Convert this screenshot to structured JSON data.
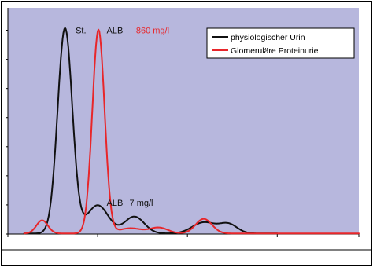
{
  "chart_data": {
    "type": "line",
    "title": "",
    "xlabel": "",
    "ylabel": "",
    "x": [
      0,
      1,
      2,
      3,
      4,
      5,
      6,
      7,
      8,
      9,
      10,
      11,
      12,
      13,
      14,
      15,
      16,
      17,
      18,
      19,
      20,
      21,
      22,
      23,
      24,
      25,
      26,
      27,
      28,
      29,
      30,
      31,
      32,
      33,
      34,
      35,
      36,
      37,
      38,
      39,
      40,
      41,
      42,
      43,
      44,
      45,
      46,
      47,
      48,
      49,
      50,
      51,
      52,
      53,
      54,
      55,
      56,
      57,
      58,
      59,
      60,
      61,
      62,
      63,
      64,
      65,
      66,
      67,
      68,
      69,
      70,
      71,
      72,
      73,
      74,
      75,
      76,
      77,
      78,
      79,
      80,
      81,
      82,
      83,
      84,
      85,
      86,
      87,
      88,
      89,
      90,
      91,
      92,
      93,
      94,
      95,
      96,
      97,
      98,
      99,
      100,
      101,
      102,
      103,
      104,
      105,
      106,
      107,
      108,
      109,
      110,
      111,
      112,
      113,
      114,
      115,
      116,
      117,
      118,
      119,
      120,
      121,
      122,
      123,
      124,
      125,
      126,
      127,
      128,
      129,
      130,
      131,
      132,
      133,
      134,
      135,
      136,
      137,
      138,
      139,
      140,
      141,
      142,
      143,
      144,
      145,
      146,
      147,
      148,
      149,
      150,
      151,
      152,
      153,
      154,
      155,
      156,
      157,
      158,
      159,
      160,
      161,
      162,
      163,
      164,
      165,
      166,
      167,
      168,
      169,
      170,
      171,
      172,
      173,
      174,
      175,
      176,
      177,
      178,
      179,
      180,
      181,
      182,
      183,
      184,
      185,
      186,
      187,
      188,
      189,
      190,
      191,
      192,
      193,
      194,
      195,
      196,
      197,
      198,
      199,
      200,
      201,
      202,
      203,
      204,
      205,
      206,
      207,
      208,
      209,
      210,
      211,
      212,
      213,
      214,
      215,
      216,
      217,
      218,
      219,
      220,
      221,
      222,
      223,
      224,
      225,
      226,
      227,
      228,
      229,
      230,
      231,
      232,
      233,
      234,
      235,
      236,
      237,
      238,
      239,
      240,
      241,
      242,
      243,
      244,
      245,
      246,
      247,
      248,
      249,
      250,
      251,
      252,
      253,
      254,
      255,
      256,
      257,
      258,
      259,
      260,
      261,
      262,
      263,
      264,
      265,
      266,
      267,
      268,
      269,
      270,
      271,
      272,
      273,
      274,
      275,
      276,
      277,
      278,
      279,
      280,
      281,
      282,
      283,
      284,
      285,
      286,
      287,
      288,
      289,
      290,
      291,
      292,
      293,
      294,
      295,
      296,
      297,
      298,
      299,
      300,
      301,
      302,
      303,
      304,
      305,
      306,
      307,
      308,
      309,
      310,
      311,
      312,
      313,
      314,
      315,
      316,
      317,
      318,
      319,
      320,
      321,
      322,
      323,
      324,
      325,
      326,
      327,
      328,
      329,
      330,
      331,
      332,
      333,
      334,
      335,
      336,
      337,
      338,
      339,
      340,
      341,
      342,
      343,
      344,
      345,
      346,
      347,
      348,
      349,
      350,
      351,
      352,
      353,
      354,
      355,
      356,
      357,
      358,
      359,
      360,
      361,
      362,
      363,
      364,
      365,
      366,
      367,
      368,
      369,
      370,
      371,
      372,
      373,
      374,
      375,
      376,
      377,
      378,
      379,
      380,
      381,
      382,
      383,
      384,
      385,
      386,
      387,
      388,
      389,
      390,
      391,
      392,
      393,
      394,
      395,
      396,
      397,
      398,
      399,
      400,
      401,
      402,
      403,
      404,
      405,
      406,
      407,
      408,
      409,
      410,
      411,
      412,
      413,
      414,
      415,
      416,
      417,
      418,
      419,
      420,
      421,
      422,
      423,
      424,
      425,
      426,
      427,
      428,
      429,
      430
    ],
    "xlim": [
      0,
      430
    ],
    "ylim": [
      0,
      7.5
    ],
    "x_tick_values": [
      0,
      110,
      220,
      330,
      430
    ],
    "y_tick_values": [
      0,
      1,
      2,
      3,
      4,
      5,
      6,
      7
    ],
    "x_tick_labels": [],
    "y_tick_labels": [],
    "grid": false,
    "legend_position": "top-right",
    "colors": {
      "plot_background": "#b7b7dd",
      "frame": "#000000",
      "black_series": "#111111",
      "red_series": "#e8262a"
    },
    "series": [
      {
        "name": "physiologischer Urin",
        "color": "#111111",
        "peaks": [
          {
            "x": 70,
            "y": 7.05,
            "w": 9
          },
          {
            "x": 110,
            "y": 0.97,
            "w": 13
          },
          {
            "x": 155,
            "y": 0.58,
            "w": 12
          },
          {
            "x": 240,
            "y": 0.38,
            "w": 14
          },
          {
            "x": 270,
            "y": 0.32,
            "w": 11
          }
        ],
        "baseline": 0.02,
        "start": 20,
        "end": 330
      },
      {
        "name": "Glomeruläre Proteinurie",
        "color": "#e8262a",
        "peaks": [
          {
            "x": 42,
            "y": 0.45,
            "w": 7
          },
          {
            "x": 111,
            "y": 7.0,
            "w": 7.5
          },
          {
            "x": 150,
            "y": 0.18,
            "w": 14
          },
          {
            "x": 185,
            "y": 0.2,
            "w": 11
          },
          {
            "x": 240,
            "y": 0.5,
            "w": 10
          }
        ],
        "baseline": 0.02,
        "start": 20,
        "end": 430
      }
    ],
    "annotations": [
      {
        "text": "St.",
        "x": 83,
        "y": 7.0,
        "color": "#111111"
      },
      {
        "text": "ALB",
        "x": 121,
        "y": 7.0,
        "color": "#111111"
      },
      {
        "text": "860 mg/l",
        "x": 157,
        "y": 7.0,
        "color": "#e8262a"
      },
      {
        "text": "ALB",
        "x": 121,
        "y": 1.08,
        "color": "#111111"
      },
      {
        "text": "7 mg/l",
        "x": 149,
        "y": 1.08,
        "color": "#111111"
      }
    ]
  }
}
